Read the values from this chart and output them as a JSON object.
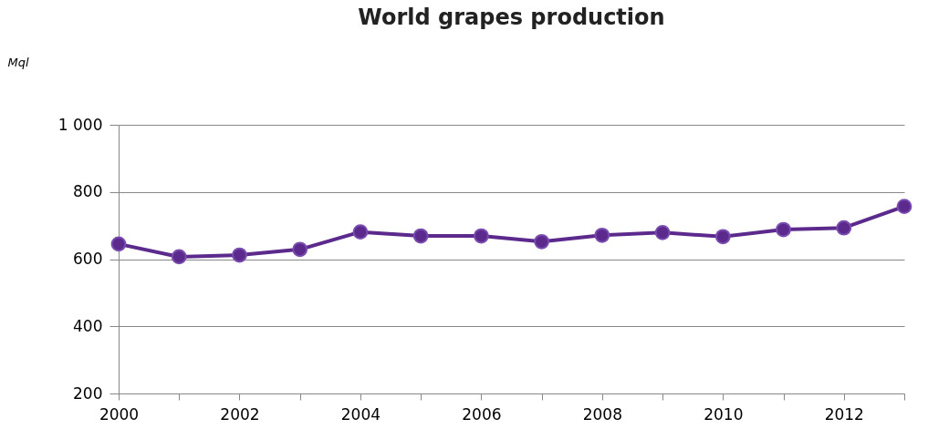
{
  "chart_data": {
    "type": "line",
    "title": "World grapes production",
    "ylabel": "Mql",
    "x": [
      2000,
      2001,
      2002,
      2003,
      2004,
      2005,
      2006,
      2007,
      2008,
      2009,
      2010,
      2011,
      2012,
      2013
    ],
    "series": [
      {
        "color": "#5b2a8c",
        "values": [
          645,
          607,
          612,
          629,
          681,
          669,
          669,
          652,
          671,
          679,
          667,
          688,
          693,
          757
        ]
      }
    ],
    "xlim": [
      2000,
      2013
    ],
    "xticks": [
      2000,
      {
        "value": 2001,
        "label": null
      },
      2002,
      {
        "value": 2003,
        "label": null
      },
      2004,
      {
        "value": 2005,
        "label": null
      },
      2006,
      {
        "value": 2007,
        "label": null
      },
      2008,
      {
        "value": 2009,
        "label": null
      },
      2010,
      {
        "value": 2011,
        "label": null
      },
      2012,
      {
        "value": 2013,
        "label": null
      }
    ],
    "ylim": [
      200,
      1000
    ],
    "yticks": [
      200,
      400,
      600,
      800,
      {
        "value": 1000,
        "label": "1 000"
      }
    ],
    "grid": "y",
    "marker": "circle",
    "line_style": "solid"
  }
}
